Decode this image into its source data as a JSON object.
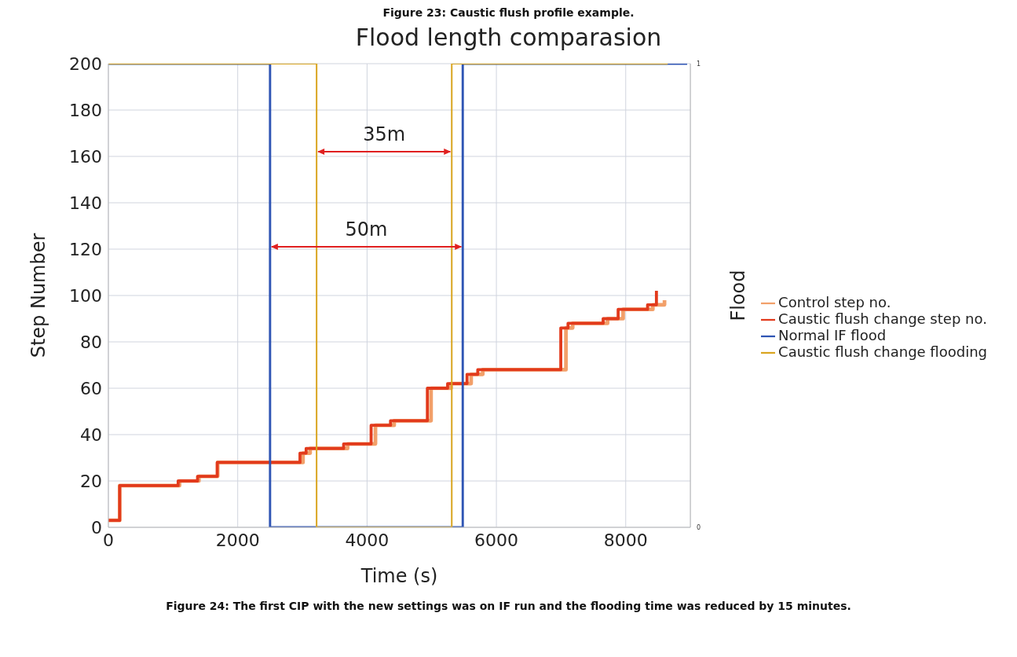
{
  "chart_data": {
    "type": "step",
    "title": "Flood length comparasion",
    "xlabel": "Time (s)",
    "ylabel": "Step Number",
    "y2label": "Flood",
    "annotations": [
      "50m",
      "35m",
      "Figure 23: Caustic flush profile example.",
      "Figure 24: The first CIP with the new settings was on IF run and the flooding time was reduced by 15 minutes."
    ],
    "xlim": [
      0,
      9000
    ],
    "xticks": [
      0,
      2000,
      4000,
      6000,
      8000
    ],
    "ylim": [
      0,
      200
    ],
    "yticks": [
      0,
      20,
      40,
      60,
      80,
      100,
      120,
      140,
      160,
      180,
      200
    ],
    "y2lim": [
      0,
      1
    ],
    "y2ticks": [
      0,
      1
    ],
    "grid": true,
    "legend": "right",
    "marker": "none",
    "line_style": "solid",
    "series": [
      {
        "name": "Control step no.",
        "color": "#f2a06a",
        "x": [
          0,
          175,
          1100,
          1400,
          1690,
          3010,
          3120,
          3700,
          4130,
          4420,
          4990,
          5300,
          5610,
          5790,
          7076,
          7180,
          7720,
          7960,
          8420,
          8600
        ],
        "values": [
          3,
          18,
          20,
          22,
          28,
          32,
          34,
          36,
          44,
          46,
          60,
          62,
          66,
          68,
          86,
          88,
          90,
          94,
          96,
          98
        ]
      },
      {
        "name": "Caustic flush change step no.",
        "color": "#e23a1c",
        "x": [
          0,
          175,
          1079,
          1379,
          1683,
          2963,
          3058,
          3638,
          4063,
          4363,
          4933,
          5246,
          5546,
          5712,
          6996,
          7108,
          7651,
          7883,
          8338,
          8475
        ],
        "values": [
          3,
          18,
          20,
          22,
          28,
          32,
          34,
          36,
          44,
          46,
          60,
          62,
          66,
          68,
          86,
          88,
          90,
          94,
          96,
          102
        ]
      },
      {
        "name": "Normal IF flood",
        "color": "#2f55b4",
        "axis": "y2",
        "x": [
          0,
          2500,
          5480,
          8950
        ],
        "values": [
          1,
          0,
          1,
          1
        ]
      },
      {
        "name": "Caustic flush change flooding",
        "color": "#d9a520",
        "axis": "y2",
        "x": [
          0,
          3220,
          5310,
          8650
        ],
        "values": [
          1,
          0,
          1,
          1
        ]
      }
    ]
  }
}
